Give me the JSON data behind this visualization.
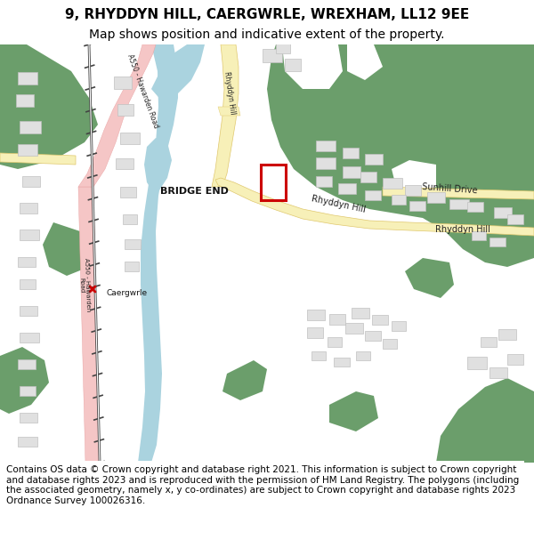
{
  "title_line1": "9, RHYDDYN HILL, CAERGWRLE, WREXHAM, LL12 9EE",
  "title_line2": "Map shows position and indicative extent of the property.",
  "footer": "Contains OS data © Crown copyright and database right 2021. This information is subject to Crown copyright and database rights 2023 and is reproduced with the permission of HM Land Registry. The polygons (including the associated geometry, namely x, y co-ordinates) are subject to Crown copyright and database rights 2023 Ordnance Survey 100026316.",
  "map_bg": "#ffffff",
  "green_color": "#6b9e6b",
  "water_color": "#aad3df",
  "road_yellow_color": "#f7f0b8",
  "road_yellow_border": "#e0c86e",
  "road_pink_color": "#f5c6c6",
  "road_pink_border": "#e8a0a0",
  "building_color": "#e0e0e0",
  "building_edge": "#c0c0c0",
  "railway_color": "#555555",
  "property_box_color": "#cc0000",
  "title_fontsize": 11,
  "subtitle_fontsize": 10,
  "footer_fontsize": 7.5,
  "label_fontsize": 7
}
